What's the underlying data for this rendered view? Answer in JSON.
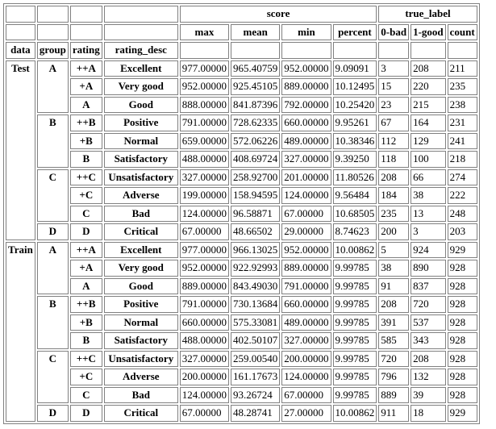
{
  "headers": {
    "score": "score",
    "true_label": "true_label",
    "max": "max",
    "mean": "mean",
    "min": "min",
    "percent": "percent",
    "bad": "0-bad",
    "good": "1-good",
    "count": "count",
    "data": "data",
    "group": "group",
    "rating": "rating",
    "rating_desc": "rating_desc"
  },
  "datasets": [
    {
      "data": "Test",
      "groups": [
        {
          "group": "A",
          "rows": [
            {
              "rating": "++A",
              "desc": "Excellent",
              "max": "977.00000",
              "mean": "965.40759",
              "min": "952.00000",
              "percent": "9.09091",
              "bad": "3",
              "good": "208",
              "count": "211"
            },
            {
              "rating": "+A",
              "desc": "Very good",
              "max": "952.00000",
              "mean": "925.45105",
              "min": "889.00000",
              "percent": "10.12495",
              "bad": "15",
              "good": "220",
              "count": "235"
            },
            {
              "rating": "A",
              "desc": "Good",
              "max": "888.00000",
              "mean": "841.87396",
              "min": "792.00000",
              "percent": "10.25420",
              "bad": "23",
              "good": "215",
              "count": "238"
            }
          ]
        },
        {
          "group": "B",
          "rows": [
            {
              "rating": "++B",
              "desc": "Positive",
              "max": "791.00000",
              "mean": "728.62335",
              "min": "660.00000",
              "percent": "9.95261",
              "bad": "67",
              "good": "164",
              "count": "231"
            },
            {
              "rating": "+B",
              "desc": "Normal",
              "max": "659.00000",
              "mean": "572.06226",
              "min": "489.00000",
              "percent": "10.38346",
              "bad": "112",
              "good": "129",
              "count": "241"
            },
            {
              "rating": "B",
              "desc": "Satisfactory",
              "max": "488.00000",
              "mean": "408.69724",
              "min": "327.00000",
              "percent": "9.39250",
              "bad": "118",
              "good": "100",
              "count": "218"
            }
          ]
        },
        {
          "group": "C",
          "rows": [
            {
              "rating": "++C",
              "desc": "Unsatisfactory",
              "max": "327.00000",
              "mean": "258.92700",
              "min": "201.00000",
              "percent": "11.80526",
              "bad": "208",
              "good": "66",
              "count": "274"
            },
            {
              "rating": "+C",
              "desc": "Adverse",
              "max": "199.00000",
              "mean": "158.94595",
              "min": "124.00000",
              "percent": "9.56484",
              "bad": "184",
              "good": "38",
              "count": "222"
            },
            {
              "rating": "C",
              "desc": "Bad",
              "max": "124.00000",
              "mean": "96.58871",
              "min": "67.00000",
              "percent": "10.68505",
              "bad": "235",
              "good": "13",
              "count": "248"
            }
          ]
        },
        {
          "group": "D",
          "rows": [
            {
              "rating": "D",
              "desc": "Critical",
              "max": "67.00000",
              "mean": "48.66502",
              "min": "29.00000",
              "percent": "8.74623",
              "bad": "200",
              "good": "3",
              "count": "203"
            }
          ]
        }
      ]
    },
    {
      "data": "Train",
      "groups": [
        {
          "group": "A",
          "rows": [
            {
              "rating": "++A",
              "desc": "Excellent",
              "max": "977.00000",
              "mean": "966.13025",
              "min": "952.00000",
              "percent": "10.00862",
              "bad": "5",
              "good": "924",
              "count": "929"
            },
            {
              "rating": "+A",
              "desc": "Very good",
              "max": "952.00000",
              "mean": "922.92993",
              "min": "889.00000",
              "percent": "9.99785",
              "bad": "38",
              "good": "890",
              "count": "928"
            },
            {
              "rating": "A",
              "desc": "Good",
              "max": "889.00000",
              "mean": "843.49030",
              "min": "791.00000",
              "percent": "9.99785",
              "bad": "91",
              "good": "837",
              "count": "928"
            }
          ]
        },
        {
          "group": "B",
          "rows": [
            {
              "rating": "++B",
              "desc": "Positive",
              "max": "791.00000",
              "mean": "730.13684",
              "min": "660.00000",
              "percent": "9.99785",
              "bad": "208",
              "good": "720",
              "count": "928"
            },
            {
              "rating": "+B",
              "desc": "Normal",
              "max": "660.00000",
              "mean": "575.33081",
              "min": "489.00000",
              "percent": "9.99785",
              "bad": "391",
              "good": "537",
              "count": "928"
            },
            {
              "rating": "B",
              "desc": "Satisfactory",
              "max": "488.00000",
              "mean": "402.50107",
              "min": "327.00000",
              "percent": "9.99785",
              "bad": "585",
              "good": "343",
              "count": "928"
            }
          ]
        },
        {
          "group": "C",
          "rows": [
            {
              "rating": "++C",
              "desc": "Unsatisfactory",
              "max": "327.00000",
              "mean": "259.00540",
              "min": "200.00000",
              "percent": "9.99785",
              "bad": "720",
              "good": "208",
              "count": "928"
            },
            {
              "rating": "+C",
              "desc": "Adverse",
              "max": "200.00000",
              "mean": "161.17673",
              "min": "124.00000",
              "percent": "9.99785",
              "bad": "796",
              "good": "132",
              "count": "928"
            },
            {
              "rating": "C",
              "desc": "Bad",
              "max": "124.00000",
              "mean": "93.26724",
              "min": "67.00000",
              "percent": "9.99785",
              "bad": "889",
              "good": "39",
              "count": "928"
            }
          ]
        },
        {
          "group": "D",
          "rows": [
            {
              "rating": "D",
              "desc": "Critical",
              "max": "67.00000",
              "mean": "48.28741",
              "min": "27.00000",
              "percent": "10.00862",
              "bad": "911",
              "good": "18",
              "count": "929"
            }
          ]
        }
      ]
    }
  ]
}
